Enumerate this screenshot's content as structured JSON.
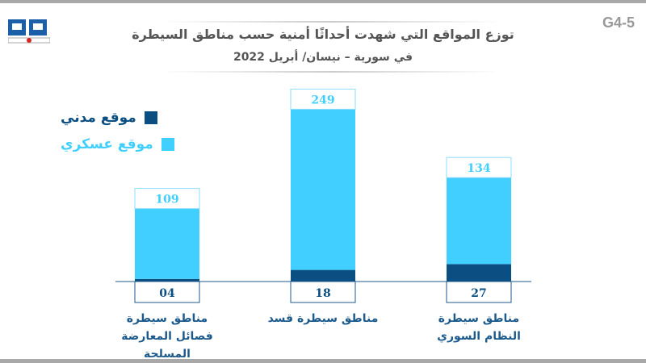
{
  "header": {
    "title_line1": "توزع المواقع التي شهدت أحداثًا أمنية حسب مناطق السيطرة",
    "title_line2": "في سورية – نيسان/ أبريل 2022",
    "code": "G4-5",
    "logo_text": "مرصد OBSERVATORY"
  },
  "colors": {
    "civil": "#0b4f82",
    "military": "#40cfff"
  },
  "chart_data": {
    "type": "bar",
    "stacked": true,
    "title": "توزع المواقع التي شهدت أحداثًا أمنية حسب مناطق السيطرة في سورية – نيسان/ أبريل 2022",
    "categories": [
      "مناطق سيطرة فصائل المعارضة المسلحة",
      "مناطق سيطرة قسد",
      "مناطق سيطرة النظام السوري"
    ],
    "series": [
      {
        "name": "موقع مدني",
        "values": [
          4,
          18,
          27
        ]
      },
      {
        "name": "موقع عسكري",
        "values": [
          109,
          249,
          134
        ]
      }
    ],
    "value_labels": {
      "civil": [
        "04",
        "18",
        "27"
      ],
      "military": [
        "109",
        "249",
        "134"
      ]
    },
    "legend_position": "top-left",
    "grid": false,
    "ylim": [
      0,
      270
    ]
  }
}
